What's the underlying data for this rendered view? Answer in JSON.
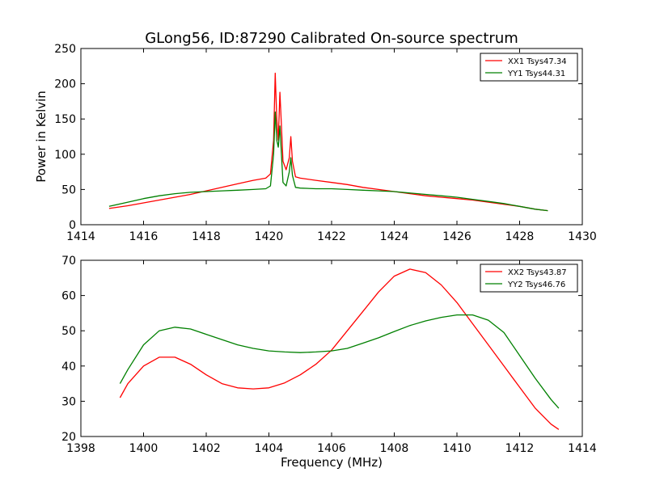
{
  "title": "GLong56, ID:87290 Calibrated On-source spectrum",
  "chart_data": [
    {
      "type": "line",
      "ylabel": "Power in Kelvin",
      "xlabel": "",
      "xlim": [
        1414,
        1430
      ],
      "ylim": [
        0,
        250
      ],
      "xticks": [
        1414,
        1416,
        1418,
        1420,
        1422,
        1424,
        1426,
        1428,
        1430
      ],
      "yticks": [
        0,
        50,
        100,
        150,
        200,
        250
      ],
      "legend_position": "top-right",
      "series": [
        {
          "name": "XX1 Tsys47.34",
          "color": "#ff0000",
          "x": [
            1414.9,
            1415.5,
            1416.0,
            1416.5,
            1417.0,
            1417.5,
            1418.0,
            1418.5,
            1419.0,
            1419.5,
            1419.9,
            1420.05,
            1420.15,
            1420.2,
            1420.25,
            1420.3,
            1420.35,
            1420.4,
            1420.45,
            1420.55,
            1420.65,
            1420.7,
            1420.75,
            1420.85,
            1421.0,
            1421.5,
            1422.0,
            1422.5,
            1423.0,
            1423.5,
            1424.0,
            1424.5,
            1425.0,
            1425.5,
            1426.0,
            1426.5,
            1427.0,
            1427.5,
            1428.0,
            1428.5,
            1428.9
          ],
          "y": [
            23,
            27,
            31,
            35,
            39,
            43,
            48,
            53,
            58,
            63,
            66,
            72,
            120,
            215,
            150,
            120,
            188,
            140,
            90,
            78,
            95,
            125,
            90,
            68,
            66,
            63,
            60,
            57,
            53,
            50,
            47,
            44,
            41,
            39,
            37,
            35,
            32,
            29,
            26,
            22,
            20
          ]
        },
        {
          "name": "YY1 Tsys44.31",
          "color": "#008000",
          "x": [
            1414.9,
            1415.5,
            1416.0,
            1416.5,
            1417.0,
            1417.5,
            1418.0,
            1418.5,
            1419.0,
            1419.5,
            1419.9,
            1420.05,
            1420.15,
            1420.2,
            1420.25,
            1420.3,
            1420.35,
            1420.4,
            1420.45,
            1420.55,
            1420.65,
            1420.7,
            1420.75,
            1420.85,
            1421.0,
            1421.5,
            1422.0,
            1422.5,
            1423.0,
            1423.5,
            1424.0,
            1424.5,
            1425.0,
            1425.5,
            1426.0,
            1426.5,
            1427.0,
            1427.5,
            1428.0,
            1428.5,
            1428.9
          ],
          "y": [
            26,
            32,
            37,
            41,
            44,
            46,
            47,
            48,
            49,
            50,
            51,
            55,
            100,
            160,
            120,
            110,
            140,
            100,
            60,
            55,
            75,
            95,
            70,
            53,
            52,
            51,
            51,
            50,
            49,
            48,
            47,
            45,
            43,
            41,
            39,
            36,
            33,
            30,
            26,
            22,
            20
          ]
        }
      ]
    },
    {
      "type": "line",
      "ylabel": "",
      "xlabel": "Frequency (MHz)",
      "xlim": [
        1398,
        1414
      ],
      "ylim": [
        20,
        70
      ],
      "xticks": [
        1398,
        1400,
        1402,
        1404,
        1406,
        1408,
        1410,
        1412,
        1414
      ],
      "yticks": [
        20,
        30,
        40,
        50,
        60,
        70
      ],
      "legend_position": "top-right",
      "series": [
        {
          "name": "XX2 Tsys43.87",
          "color": "#ff0000",
          "x": [
            1399.25,
            1399.5,
            1400.0,
            1400.5,
            1401.0,
            1401.5,
            1402.0,
            1402.5,
            1403.0,
            1403.5,
            1404.0,
            1404.5,
            1405.0,
            1405.5,
            1406.0,
            1406.5,
            1407.0,
            1407.5,
            1408.0,
            1408.5,
            1409.0,
            1409.5,
            1410.0,
            1410.5,
            1411.0,
            1411.5,
            1412.0,
            1412.5,
            1413.0,
            1413.25
          ],
          "y": [
            31,
            35,
            40,
            42.5,
            42.5,
            40.5,
            37.5,
            35,
            33.8,
            33.5,
            33.8,
            35.2,
            37.5,
            40.5,
            44.5,
            50,
            55.5,
            61,
            65.5,
            67.5,
            66.5,
            63,
            58,
            52,
            46,
            40,
            34,
            28,
            23.5,
            22
          ]
        },
        {
          "name": "YY2 Tsys46.76",
          "color": "#008000",
          "x": [
            1399.25,
            1399.5,
            1400.0,
            1400.5,
            1401.0,
            1401.5,
            1402.0,
            1402.5,
            1403.0,
            1403.5,
            1404.0,
            1404.5,
            1405.0,
            1405.5,
            1406.0,
            1406.5,
            1407.0,
            1407.5,
            1408.0,
            1408.5,
            1409.0,
            1409.5,
            1410.0,
            1410.5,
            1411.0,
            1411.5,
            1412.0,
            1412.5,
            1413.0,
            1413.25
          ],
          "y": [
            35,
            39,
            46,
            50,
            51,
            50.5,
            49,
            47.5,
            46,
            45,
            44.3,
            44,
            43.8,
            44,
            44.3,
            45,
            46.5,
            48,
            49.8,
            51.5,
            52.8,
            53.8,
            54.5,
            54.5,
            53,
            49.5,
            43,
            36.5,
            30.5,
            28
          ]
        }
      ]
    }
  ]
}
